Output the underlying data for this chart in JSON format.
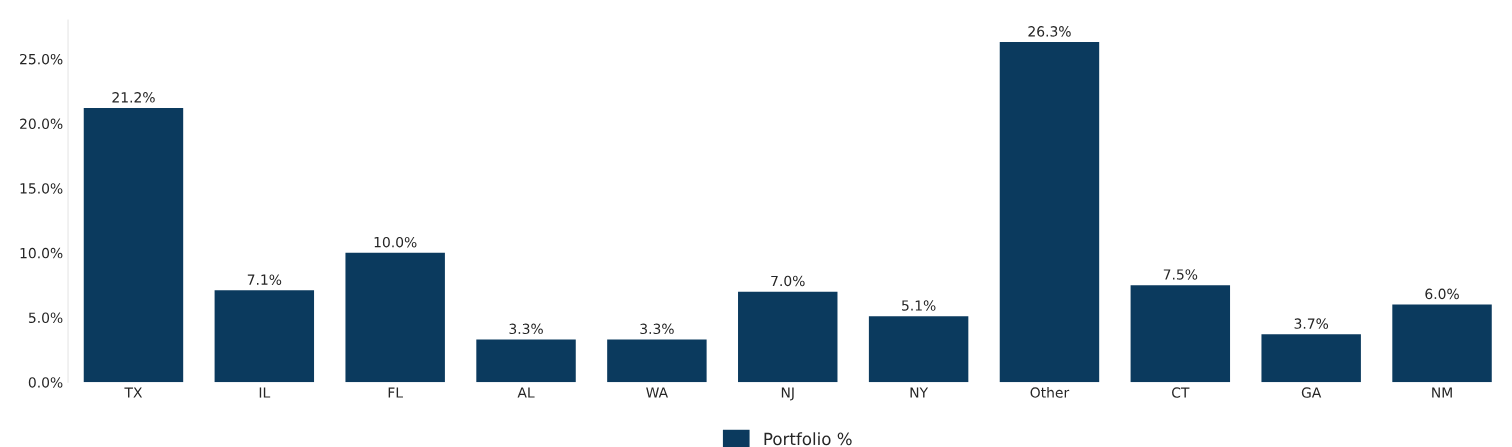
{
  "chart_data": {
    "type": "bar",
    "categories": [
      "TX",
      "IL",
      "FL",
      "AL",
      "WA",
      "NJ",
      "NY",
      "Other",
      "CT",
      "GA",
      "NM"
    ],
    "series": [
      {
        "name": "Portfolio %",
        "color": "#0b3a5e",
        "values": [
          21.2,
          7.1,
          10.0,
          3.3,
          3.3,
          7.0,
          5.1,
          26.3,
          7.5,
          3.7,
          6.0
        ],
        "value_labels": [
          "21.2%",
          "7.1%",
          "10.0%",
          "3.3%",
          "3.3%",
          "7.0%",
          "5.1%",
          "26.3%",
          "7.5%",
          "3.7%",
          "6.0%"
        ]
      }
    ],
    "ylim": [
      0,
      28
    ],
    "yticks": [
      {
        "value": 0,
        "label": "0.0%"
      },
      {
        "value": 5,
        "label": "5.0%"
      },
      {
        "value": 10,
        "label": "10.0%"
      },
      {
        "value": 15,
        "label": "15.0%"
      },
      {
        "value": 20,
        "label": "20.0%"
      },
      {
        "value": 25,
        "label": "25.0%"
      }
    ],
    "grid": false,
    "legend": "bottom"
  }
}
